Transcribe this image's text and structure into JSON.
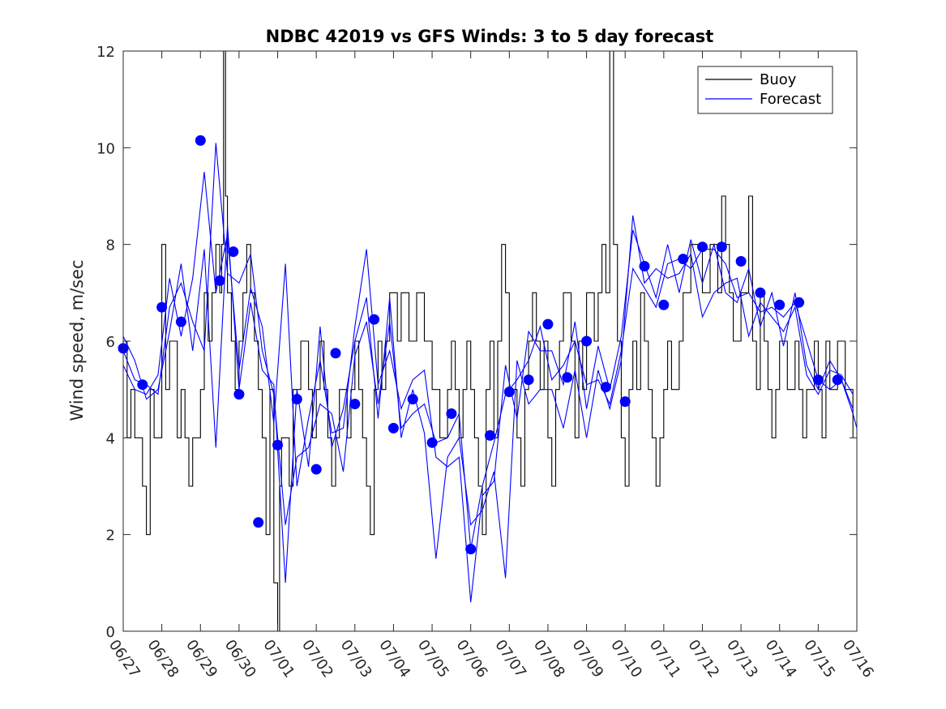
{
  "chart_data": {
    "type": "line",
    "title": "NDBC 42019 vs GFS Winds: 3 to 5 day forecast",
    "xlabel": "",
    "ylabel": "Wind speed, m/sec",
    "xlim": [
      0,
      19
    ],
    "ylim": [
      0,
      12
    ],
    "x_tick_labels": [
      "06/27",
      "06/28",
      "06/29",
      "06/30",
      "07/01",
      "07/02",
      "07/03",
      "07/04",
      "07/05",
      "07/06",
      "07/07",
      "07/08",
      "07/09",
      "07/10",
      "07/11",
      "07/12",
      "07/13",
      "07/14",
      "07/15",
      "07/16"
    ],
    "y_ticks": [
      0,
      2,
      4,
      6,
      8,
      10,
      12
    ],
    "legend": {
      "position": "top-right",
      "entries": [
        "Buoy",
        "Forecast"
      ]
    },
    "colors": {
      "buoy": "#000000",
      "forecast": "#0000ff"
    },
    "buoy": {
      "x": [
        0.0,
        0.1,
        0.2,
        0.3,
        0.4,
        0.5,
        0.6,
        0.7,
        0.8,
        0.9,
        1.0,
        1.1,
        1.2,
        1.3,
        1.4,
        1.5,
        1.6,
        1.7,
        1.8,
        1.9,
        2.0,
        2.1,
        2.2,
        2.3,
        2.4,
        2.5,
        2.55,
        2.6,
        2.65,
        2.7,
        2.8,
        2.9,
        3.0,
        3.1,
        3.2,
        3.3,
        3.4,
        3.5,
        3.6,
        3.7,
        3.8,
        3.9,
        4.0,
        4.05,
        4.1,
        4.2,
        4.3,
        4.4,
        4.5,
        4.6,
        4.7,
        4.8,
        4.9,
        5.0,
        5.1,
        5.2,
        5.3,
        5.4,
        5.5,
        5.6,
        5.7,
        5.8,
        5.9,
        6.0,
        6.1,
        6.2,
        6.3,
        6.4,
        6.5,
        6.6,
        6.7,
        6.8,
        6.9,
        7.0,
        7.1,
        7.2,
        7.3,
        7.4,
        7.5,
        7.6,
        7.7,
        7.8,
        7.9,
        8.0,
        8.1,
        8.2,
        8.3,
        8.4,
        8.5,
        8.6,
        8.7,
        8.8,
        8.9,
        9.0,
        9.1,
        9.2,
        9.3,
        9.4,
        9.5,
        9.6,
        9.7,
        9.8,
        9.9,
        10.0,
        10.1,
        10.2,
        10.3,
        10.4,
        10.5,
        10.6,
        10.7,
        10.8,
        10.9,
        11.0,
        11.1,
        11.2,
        11.3,
        11.4,
        11.5,
        11.6,
        11.7,
        11.8,
        11.9,
        12.0,
        12.1,
        12.2,
        12.3,
        12.4,
        12.5,
        12.6,
        12.7,
        12.8,
        12.9,
        13.0,
        13.1,
        13.2,
        13.3,
        13.4,
        13.5,
        13.6,
        13.7,
        13.8,
        13.9,
        14.0,
        14.1,
        14.2,
        14.3,
        14.4,
        14.5,
        14.6,
        14.7,
        14.8,
        14.9,
        15.0,
        15.1,
        15.2,
        15.3,
        15.4,
        15.5,
        15.6,
        15.7,
        15.8,
        15.9,
        16.0,
        16.1,
        16.2,
        16.3,
        16.4,
        16.5,
        16.6,
        16.7,
        16.8,
        16.9,
        17.0,
        17.1,
        17.2,
        17.3,
        17.4,
        17.5,
        17.6,
        17.7,
        17.8,
        17.9,
        18.0,
        18.1,
        18.2,
        18.3,
        18.4,
        18.5,
        18.6,
        18.7,
        18.8,
        18.9
      ],
      "y": [
        6,
        4,
        5,
        4,
        4,
        3,
        2,
        5,
        4,
        4,
        8,
        5,
        6,
        6,
        4,
        5,
        4,
        3,
        4,
        4,
        5,
        7,
        6,
        7,
        8,
        7,
        8,
        12,
        9,
        7,
        6,
        5,
        6,
        7,
        8,
        7,
        6,
        5,
        4,
        2,
        5,
        1,
        0,
        3,
        4,
        4,
        3,
        5,
        5,
        6,
        6,
        5,
        4,
        5,
        6,
        5,
        4,
        3,
        4,
        5,
        5,
        4,
        5,
        6,
        5,
        4,
        3,
        2,
        5,
        6,
        5,
        6,
        7,
        7,
        6,
        7,
        7,
        6,
        6,
        7,
        7,
        6,
        6,
        5,
        5,
        4,
        4,
        5,
        6,
        5,
        4,
        5,
        6,
        5,
        4,
        3,
        2,
        5,
        6,
        4,
        6,
        8,
        7,
        5,
        5,
        4,
        3,
        5,
        6,
        7,
        6,
        5,
        6,
        4,
        3,
        5,
        6,
        7,
        7,
        6,
        4,
        6,
        5,
        7,
        7,
        6,
        7,
        8,
        7,
        12,
        8,
        6,
        4,
        3,
        5,
        6,
        5,
        7,
        6,
        5,
        4,
        3,
        4,
        5,
        6,
        5,
        5,
        6,
        7,
        7,
        8,
        8,
        8,
        7,
        7,
        8,
        8,
        7,
        9,
        8,
        7,
        6,
        6,
        7,
        7,
        9,
        6,
        5,
        7,
        6,
        5,
        4,
        5,
        6,
        6,
        5,
        5,
        6,
        5,
        4,
        5,
        5,
        6,
        5,
        4,
        6,
        5,
        5,
        6,
        6,
        5,
        5,
        4
      ]
    },
    "forecast": {
      "series": [
        {
          "x": [
            0.0,
            0.3,
            0.6,
            0.9,
            1.2,
            1.5,
            1.8,
            2.1,
            2.4,
            2.7,
            3.0,
            3.3,
            3.6,
            3.9,
            4.2,
            4.5,
            4.8,
            5.1,
            5.4,
            5.7,
            6.0,
            6.3,
            6.6,
            6.9,
            7.2,
            7.5,
            7.8,
            8.1,
            8.4,
            8.7,
            9.0,
            9.3,
            9.6,
            9.9,
            10.2,
            10.5,
            10.8,
            11.1,
            11.4,
            11.7,
            12.0,
            12.3,
            12.6,
            12.9,
            13.2,
            13.5,
            13.8,
            14.1,
            14.4,
            14.7,
            15.0,
            15.3,
            15.6,
            15.9,
            16.2,
            16.5,
            16.8,
            17.1,
            17.4,
            17.7,
            18.0,
            18.3,
            18.6,
            18.9,
            19.0
          ],
          "y": [
            5.8,
            5.2,
            5.1,
            4.9,
            6.7,
            7.2,
            6.4,
            5.8,
            10.1,
            7.4,
            7.2,
            7.8,
            5.8,
            4.9,
            2.2,
            3.6,
            3.8,
            4.7,
            4.5,
            3.3,
            5.7,
            6.4,
            4.7,
            6.4,
            4.2,
            4.5,
            4.7,
            3.9,
            4.0,
            4.5,
            1.7,
            3.0,
            3.9,
            4.9,
            5.2,
            5.6,
            6.3,
            5.2,
            5.5,
            6.0,
            5.1,
            5.2,
            4.7,
            5.8,
            7.5,
            7.1,
            6.7,
            7.6,
            7.7,
            7.5,
            7.9,
            7.9,
            7.6,
            6.9,
            7.0,
            6.6,
            6.7,
            6.5,
            6.8,
            6.0,
            5.2,
            5.0,
            5.2,
            4.5,
            4.2
          ]
        },
        {
          "x": [
            0.0,
            0.3,
            0.6,
            0.9,
            1.2,
            1.5,
            1.8,
            2.1,
            2.4,
            2.7,
            3.0,
            3.3,
            3.6,
            3.9,
            4.2,
            4.5,
            4.8,
            5.1,
            5.4,
            5.7,
            6.0,
            6.3,
            6.6,
            6.9,
            7.2,
            7.5,
            7.8,
            8.1,
            8.4,
            8.7,
            9.0,
            9.3,
            9.6,
            9.9,
            10.2,
            10.5,
            10.8,
            11.1,
            11.4,
            11.7,
            12.0,
            12.3,
            12.6,
            12.9,
            13.2,
            13.5,
            13.8,
            14.1,
            14.4,
            14.7,
            15.0,
            15.3,
            15.6,
            15.9,
            16.2,
            16.5,
            16.8,
            17.1,
            17.4,
            17.7,
            18.0,
            18.3,
            18.6,
            18.9
          ],
          "y": [
            5.5,
            5.0,
            4.9,
            5.3,
            7.3,
            6.1,
            7.3,
            9.5,
            7.0,
            8.2,
            5.4,
            7.1,
            6.3,
            4.3,
            7.6,
            3.0,
            4.4,
            5.6,
            4.1,
            4.2,
            6.3,
            7.9,
            5.1,
            5.8,
            4.6,
            5.2,
            5.4,
            3.6,
            3.4,
            3.6,
            0.6,
            2.8,
            3.1,
            5.5,
            4.4,
            6.2,
            5.8,
            5.8,
            5.1,
            6.4,
            4.6,
            5.9,
            5.0,
            6.1,
            8.3,
            7.6,
            6.9,
            8.0,
            7.0,
            8.1,
            7.2,
            8.0,
            7.0,
            6.8,
            7.5,
            6.3,
            7.0,
            5.9,
            7.0,
            5.5,
            5.0,
            5.6,
            5.2,
            4.6
          ]
        },
        {
          "x": [
            0.0,
            0.3,
            0.6,
            0.9,
            1.2,
            1.5,
            1.8,
            2.1,
            2.4,
            2.7,
            3.0,
            3.3,
            3.6,
            3.9,
            4.2,
            4.5,
            4.8,
            5.1,
            5.4,
            5.7,
            6.0,
            6.3,
            6.6,
            6.9,
            7.2,
            7.5,
            7.8,
            8.1,
            8.4,
            8.7,
            9.0,
            9.3,
            9.6,
            9.9,
            10.2,
            10.5,
            10.8,
            11.1,
            11.4,
            11.7,
            12.0,
            12.3,
            12.6,
            12.9,
            13.2,
            13.5,
            13.8,
            14.1,
            14.4,
            14.7,
            15.0,
            15.3,
            15.6,
            15.9,
            16.2,
            16.5,
            16.8,
            17.1,
            17.4,
            17.7,
            18.0,
            18.3,
            18.6,
            18.9
          ],
          "y": [
            6.1,
            5.6,
            4.8,
            5.0,
            6.2,
            7.6,
            5.8,
            7.9,
            3.8,
            8.4,
            5.0,
            6.8,
            5.4,
            5.1,
            1.0,
            5.0,
            3.4,
            6.3,
            3.8,
            4.6,
            6.0,
            6.9,
            4.4,
            6.9,
            4.0,
            5.0,
            4.1,
            1.5,
            3.6,
            4.0,
            2.2,
            2.5,
            3.3,
            1.1,
            5.6,
            4.7,
            5.0,
            5.0,
            4.2,
            5.4,
            4.0,
            5.4,
            4.6,
            5.6,
            8.6,
            7.2,
            7.5,
            7.3,
            7.4,
            7.8,
            6.5,
            7.0,
            7.2,
            7.3,
            6.1,
            6.8,
            6.5,
            6.2,
            6.7,
            5.3,
            4.9,
            5.4,
            5.3,
            4.9
          ]
        }
      ],
      "markers": {
        "x": [
          0.0,
          0.5,
          1.0,
          1.5,
          2.0,
          2.5,
          2.85,
          3.0,
          3.5,
          4.0,
          4.5,
          5.0,
          5.5,
          6.0,
          6.5,
          7.0,
          7.5,
          8.0,
          8.5,
          9.0,
          9.5,
          10.0,
          10.5,
          11.0,
          11.5,
          12.0,
          12.5,
          13.0,
          13.5,
          14.0,
          14.5,
          15.0,
          15.5,
          16.0,
          16.5,
          17.0,
          17.5,
          18.0,
          18.5
        ],
        "y": [
          5.85,
          5.1,
          6.7,
          6.4,
          10.15,
          7.25,
          7.85,
          4.9,
          2.25,
          3.85,
          4.8,
          3.35,
          5.75,
          4.7,
          6.45,
          4.2,
          4.8,
          3.9,
          4.5,
          1.7,
          4.05,
          4.95,
          5.2,
          6.35,
          5.25,
          6.0,
          5.05,
          4.75,
          7.55,
          6.75,
          7.7,
          7.95,
          7.95,
          7.65,
          7.0,
          6.75,
          6.8,
          5.2,
          5.2
        ]
      }
    }
  }
}
